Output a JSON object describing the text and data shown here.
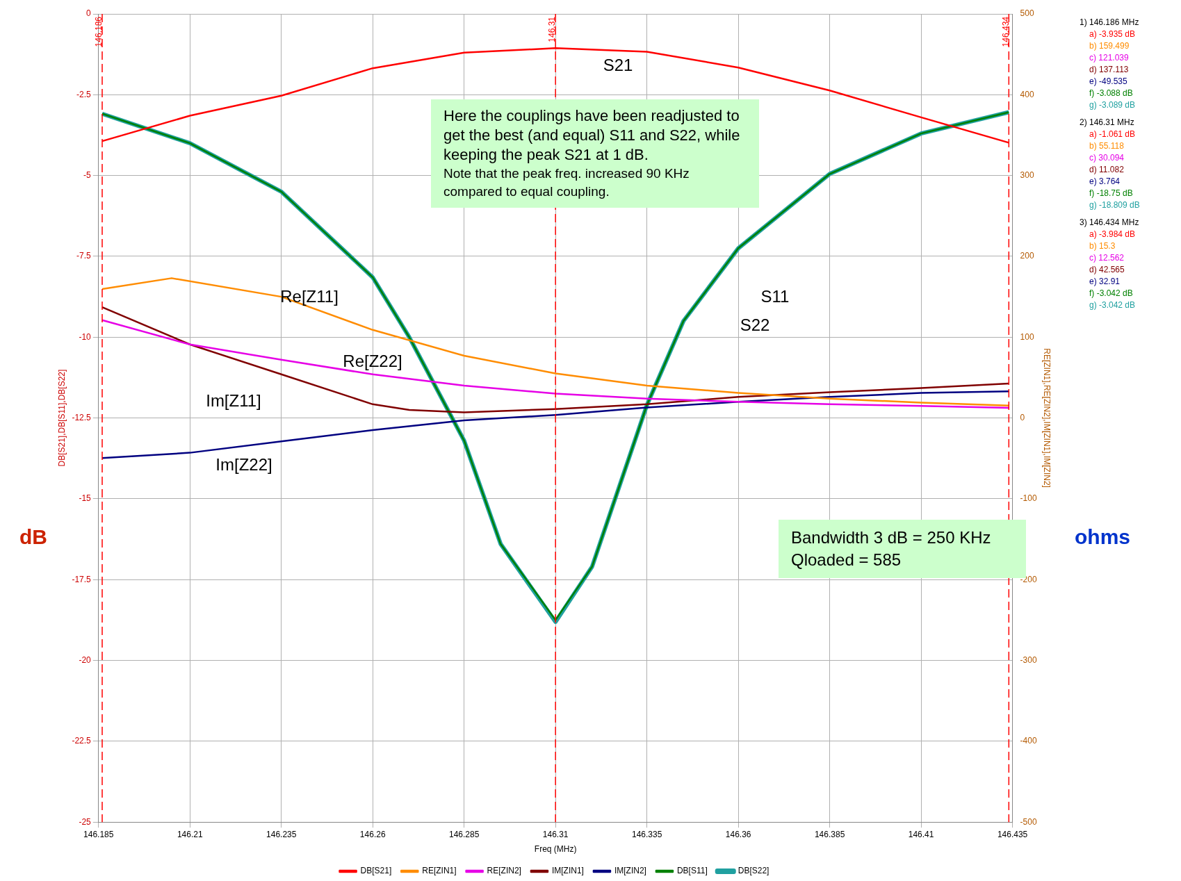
{
  "chart_data": {
    "type": "line",
    "xlabel": "Freq (MHz)",
    "ylabel": "DB[S21],DB[S11],DB[S22]",
    "y2label": "RE[ZIN1],RE[ZIN2],IM[ZIN1],IM[ZIN2]",
    "xlim": [
      146.185,
      146.435
    ],
    "xticks": [
      146.185,
      146.21,
      146.235,
      146.26,
      146.285,
      146.31,
      146.335,
      146.36,
      146.385,
      146.41,
      146.435
    ],
    "ylim": [
      -25,
      0
    ],
    "yticks": [
      -25,
      -22.5,
      -20,
      -17.5,
      -15,
      -12.5,
      -10,
      -7.5,
      -5,
      -2.5,
      0
    ],
    "y2lim": [
      -500,
      500
    ],
    "y2ticks": [
      -500,
      -400,
      -300,
      -200,
      -100,
      0,
      100,
      200,
      300,
      400,
      500
    ],
    "grid": true,
    "legend": "bottom",
    "line_style": "solid",
    "series": [
      {
        "name": "DB[S21]",
        "color": "#ff0000",
        "x": [
          146.186,
          146.21,
          146.235,
          146.26,
          146.285,
          146.31,
          146.335,
          146.36,
          146.385,
          146.41,
          146.434
        ],
        "values": [
          -3.935,
          -3.15,
          -2.53,
          -1.68,
          -1.2,
          -1.061,
          -1.17,
          -1.66,
          -2.37,
          -3.2,
          -3.984
        ]
      },
      {
        "name": "RE[ZIN1]",
        "color": "#ff8c00",
        "axis": "y2",
        "x": [
          146.186,
          146.205,
          146.235,
          146.26,
          146.285,
          146.31,
          146.335,
          146.36,
          146.385,
          146.41,
          146.434
        ],
        "values": [
          159.499,
          173,
          150,
          109,
          77,
          55.118,
          40,
          31,
          24,
          19,
          15.3
        ]
      },
      {
        "name": "RE[ZIN2]",
        "color": "#e600e6",
        "axis": "y2",
        "x": [
          146.186,
          146.21,
          146.235,
          146.26,
          146.285,
          146.31,
          146.335,
          146.36,
          146.385,
          146.41,
          146.434
        ],
        "values": [
          121.039,
          91,
          72,
          54,
          40,
          30.094,
          24,
          20,
          17,
          15,
          12.562
        ]
      },
      {
        "name": "IM[ZIN1]",
        "color": "#800000",
        "axis": "y2",
        "x": [
          146.186,
          146.21,
          146.235,
          146.26,
          146.27,
          146.285,
          146.31,
          146.335,
          146.36,
          146.385,
          146.41,
          146.434
        ],
        "values": [
          137.113,
          91,
          54,
          17,
          10,
          7,
          11.082,
          17,
          26,
          32,
          37,
          42.565
        ]
      },
      {
        "name": "IM[ZIN2]",
        "color": "#000080",
        "axis": "y2",
        "x": [
          146.186,
          146.21,
          146.235,
          146.26,
          146.285,
          146.31,
          146.335,
          146.36,
          146.385,
          146.41,
          146.434
        ],
        "values": [
          -49.535,
          -43,
          -29,
          -15,
          -3,
          3.764,
          13,
          20,
          26,
          31,
          32.91
        ]
      },
      {
        "name": "DB[S11]",
        "color": "#008000",
        "x": [
          146.186,
          146.21,
          146.235,
          146.26,
          146.27,
          146.285,
          146.295,
          146.31,
          146.32,
          146.335,
          146.345,
          146.36,
          146.385,
          146.41,
          146.434
        ],
        "values": [
          -3.088,
          -4.0,
          -5.5,
          -8.15,
          -10.0,
          -13.2,
          -16.4,
          -18.75,
          -17.1,
          -12.1,
          -9.5,
          -7.25,
          -4.95,
          -3.7,
          -3.042
        ]
      },
      {
        "name": "DB[S22]",
        "color": "#20a0a0",
        "x": [
          146.186,
          146.21,
          146.235,
          146.26,
          146.27,
          146.285,
          146.295,
          146.31,
          146.32,
          146.335,
          146.345,
          146.36,
          146.385,
          146.41,
          146.434
        ],
        "values": [
          -3.089,
          -4.0,
          -5.5,
          -8.15,
          -10.0,
          -13.2,
          -16.4,
          -18.809,
          -17.1,
          -12.1,
          -9.5,
          -7.25,
          -4.95,
          -3.7,
          -3.042
        ]
      }
    ],
    "ref_lines": [
      {
        "axis": "x",
        "value": 146.186,
        "label": "146.186",
        "color": "#ff0000",
        "line_style": "dashed"
      },
      {
        "axis": "x",
        "value": 146.31,
        "label": "146.31",
        "color": "#ff0000",
        "line_style": "dashed"
      },
      {
        "axis": "x",
        "value": 146.434,
        "label": "146.434",
        "color": "#ff0000",
        "line_style": "dashed"
      }
    ],
    "annotations": [
      "Here the couplings have been readjusted to get the best (and equal) S11 and S22, while keeping the peak S21 at 1 dB.",
      "Note that the peak freq. increased 90 KHz compared to equal coupling.",
      "Bandwidth 3 dB = 250 KHz",
      "Qloaded = 585",
      "dB",
      "ohms",
      "S21",
      "S11",
      "S22",
      "Re[Z11]",
      "Re[Z22]",
      "Im[Z11]",
      "Im[Z22]",
      "1) 146.186 MHz",
      "a) -3.935 dB",
      "b) 159.499",
      "c) 121.039",
      "d) 137.113",
      "e) -49.535",
      "f) -3.088 dB",
      "g) -3.089 dB",
      "2) 146.31 MHz",
      "a) -1.061 dB",
      "b) 55.118",
      "c) 30.094",
      "d) 11.082",
      "e) 3.764",
      "f) -18.75 dB",
      "g) -18.809 dB",
      "3) 146.434 MHz",
      "a) -3.984 dB",
      "b) 15.3",
      "c) 12.562",
      "d) 42.565",
      "e) 32.91",
      "f) -3.042 dB",
      "g) -3.042 dB"
    ]
  }
}
